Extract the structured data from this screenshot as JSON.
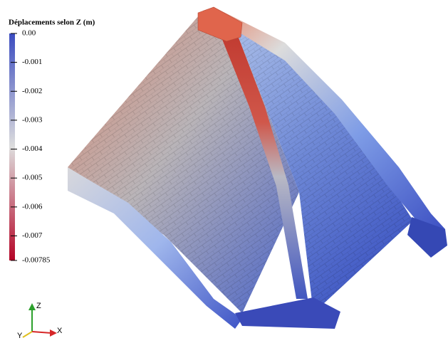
{
  "colorbar": {
    "title": "Déplacements selon Z (m)",
    "range": [
      0,
      -0.00785
    ],
    "ticks": [
      {
        "value": 0,
        "label": "0.00"
      },
      -0.001,
      -0.002,
      -0.003,
      -0.004,
      -0.005,
      -0.006,
      -0.007,
      -0.00785
    ],
    "colormap": [
      "#3b4cc0",
      "#dddddd",
      "#b40426"
    ]
  },
  "axes": {
    "z": "Z",
    "y": "Y",
    "x": "X"
  }
}
